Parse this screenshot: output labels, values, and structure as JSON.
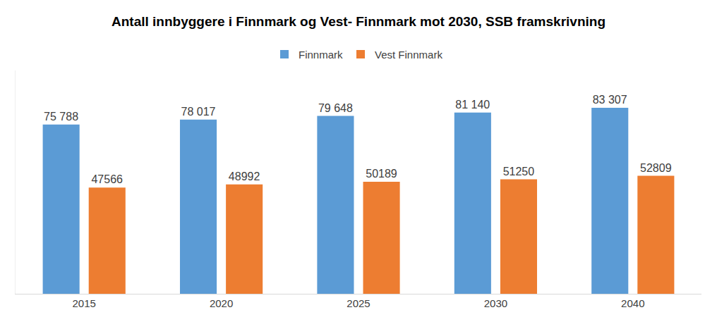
{
  "chart_data": {
    "type": "bar",
    "title": "Antall innbyggere i Finnmark og Vest- Finnmark mot 2030, SSB framskrivning",
    "categories": [
      "2015",
      "2020",
      "2025",
      "2030",
      "2040"
    ],
    "series": [
      {
        "name": "Finnmark",
        "color": "#5b9bd5",
        "values": [
          75788,
          78017,
          79648,
          81140,
          83307
        ],
        "value_labels": [
          "75 788",
          "78 017",
          "79 648",
          "81 140",
          "83 307"
        ]
      },
      {
        "name": "Vest Finnmark",
        "color": "#ed7d31",
        "values": [
          47566,
          48992,
          50189,
          51250,
          52809
        ]
      }
    ],
    "ylim": [
      0,
      100000
    ],
    "yticks": [],
    "tick_labels": "x",
    "grid": false,
    "legend": "top",
    "data_labels": true
  }
}
